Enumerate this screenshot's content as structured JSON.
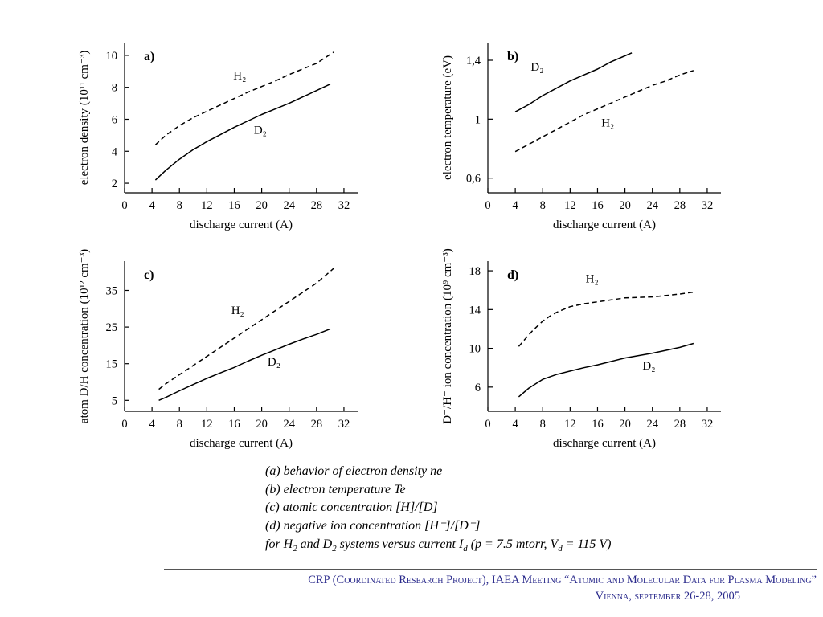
{
  "colors": {
    "footer_text": "#2b2b8c",
    "curve": "#000000",
    "axis": "#000000"
  },
  "chart_data": [
    {
      "type": "line",
      "panel": "a)",
      "xlabel": "discharge current (A)",
      "ylabel": "electron density (10¹¹ cm⁻³)",
      "xlim": [
        0,
        34
      ],
      "ylim": [
        1.4,
        10.8
      ],
      "xticks": {
        "values": [
          0,
          4,
          8,
          12,
          16,
          20,
          24,
          28,
          32
        ],
        "labels": [
          "0",
          "4",
          "8",
          "12",
          "16",
          "20",
          "24",
          "28",
          "32"
        ]
      },
      "yticks": {
        "values": [
          2,
          4,
          6,
          8,
          10
        ],
        "labels": [
          "2",
          "4",
          "6",
          "8",
          "10"
        ]
      },
      "series": [
        {
          "name": "H₂",
          "line": "dashed",
          "x": [
            4.5,
            6,
            8,
            10,
            12,
            14,
            16,
            18,
            20,
            22,
            24,
            26,
            28,
            30.5
          ],
          "y": [
            4.4,
            5.0,
            5.6,
            6.1,
            6.5,
            6.9,
            7.3,
            7.7,
            8.05,
            8.4,
            8.8,
            9.15,
            9.5,
            10.2
          ],
          "label_at": [
            16.8,
            8.5
          ]
        },
        {
          "name": "D₂",
          "line": "solid",
          "x": [
            4.5,
            6,
            8,
            10,
            12,
            14,
            16,
            18,
            20,
            22,
            24,
            26,
            28,
            30
          ],
          "y": [
            2.2,
            2.8,
            3.5,
            4.1,
            4.6,
            5.05,
            5.5,
            5.9,
            6.3,
            6.65,
            7.0,
            7.4,
            7.8,
            8.2
          ],
          "label_at": [
            19.8,
            5.1
          ]
        }
      ]
    },
    {
      "type": "line",
      "panel": "b)",
      "xlabel": "discharge current (A)",
      "ylabel": "electron temperature (eV)",
      "xlim": [
        0,
        34
      ],
      "ylim": [
        0.5,
        1.52
      ],
      "xticks": {
        "values": [
          0,
          4,
          8,
          12,
          16,
          20,
          24,
          28,
          32
        ],
        "labels": [
          "0",
          "4",
          "8",
          "12",
          "16",
          "20",
          "24",
          "28",
          "32"
        ]
      },
      "yticks": {
        "values": [
          0.6,
          1.0,
          1.4
        ],
        "labels": [
          "0,6",
          "1",
          "1,4"
        ]
      },
      "series": [
        {
          "name": "D₂",
          "line": "solid",
          "x": [
            4,
            6,
            8,
            10,
            12,
            14,
            16,
            18,
            20,
            21
          ],
          "y": [
            1.05,
            1.1,
            1.16,
            1.21,
            1.26,
            1.3,
            1.34,
            1.39,
            1.43,
            1.45
          ],
          "label_at": [
            7.2,
            1.33
          ]
        },
        {
          "name": "H₂",
          "line": "dashed",
          "x": [
            4,
            6,
            8,
            10,
            12,
            14,
            16,
            18,
            20,
            22,
            24,
            26,
            28,
            30
          ],
          "y": [
            0.78,
            0.83,
            0.88,
            0.93,
            0.98,
            1.03,
            1.07,
            1.11,
            1.15,
            1.19,
            1.23,
            1.26,
            1.3,
            1.33
          ],
          "label_at": [
            17.5,
            0.95
          ]
        }
      ]
    },
    {
      "type": "line",
      "panel": "c)",
      "xlabel": "discharge current (A)",
      "ylabel": "atom D/H concentration (10¹² cm⁻³)",
      "xlim": [
        0,
        34
      ],
      "ylim": [
        2,
        43
      ],
      "xticks": {
        "values": [
          0,
          4,
          8,
          12,
          16,
          20,
          24,
          28,
          32
        ],
        "labels": [
          "0",
          "4",
          "8",
          "12",
          "16",
          "20",
          "24",
          "28",
          "32"
        ]
      },
      "yticks": {
        "values": [
          5,
          15,
          25,
          35
        ],
        "labels": [
          "5",
          "15",
          "25",
          "35"
        ]
      },
      "series": [
        {
          "name": "H₂",
          "line": "dashed",
          "x": [
            5,
            6,
            8,
            10,
            12,
            14,
            16,
            18,
            20,
            22,
            24,
            26,
            28,
            30.5
          ],
          "y": [
            8,
            9.5,
            12,
            14.5,
            17,
            19.5,
            22,
            24.5,
            27,
            29.5,
            32,
            34.5,
            37,
            41
          ],
          "label_at": [
            16.5,
            28.5
          ]
        },
        {
          "name": "D₂",
          "line": "solid",
          "x": [
            5,
            6,
            8,
            10,
            12,
            14,
            16,
            18,
            20,
            22,
            24,
            26,
            28,
            30
          ],
          "y": [
            5,
            5.8,
            7.6,
            9.3,
            11,
            12.5,
            14,
            15.7,
            17.3,
            18.8,
            20.3,
            21.7,
            23,
            24.5
          ],
          "label_at": [
            21.8,
            14.5
          ]
        }
      ]
    },
    {
      "type": "line",
      "panel": "d)",
      "xlabel": "discharge current (A)",
      "ylabel": "D⁻/H⁻ ion concentration (10⁹ cm⁻³)",
      "xlim": [
        0,
        34
      ],
      "ylim": [
        3.5,
        19
      ],
      "xticks": {
        "values": [
          0,
          4,
          8,
          12,
          16,
          20,
          24,
          28,
          32
        ],
        "labels": [
          "0",
          "4",
          "8",
          "12",
          "16",
          "20",
          "24",
          "28",
          "32"
        ]
      },
      "yticks": {
        "values": [
          6,
          10,
          14,
          18
        ],
        "labels": [
          "6",
          "10",
          "14",
          "18"
        ]
      },
      "series": [
        {
          "name": "H₂",
          "line": "dashed",
          "x": [
            4.5,
            5.5,
            6.5,
            8,
            9,
            10,
            11,
            12,
            14,
            16,
            18,
            20,
            22,
            24,
            26,
            28,
            30
          ],
          "y": [
            10.2,
            11.0,
            11.8,
            12.8,
            13.3,
            13.7,
            14.0,
            14.3,
            14.6,
            14.8,
            15.0,
            15.2,
            15.25,
            15.3,
            15.45,
            15.6,
            15.8
          ],
          "label_at": [
            15.2,
            16.8
          ]
        },
        {
          "name": "D₂",
          "line": "solid",
          "x": [
            4.5,
            6,
            8,
            10,
            12,
            14,
            16,
            18,
            20,
            22,
            24,
            26,
            28,
            30
          ],
          "y": [
            5.0,
            5.9,
            6.8,
            7.3,
            7.65,
            8.0,
            8.3,
            8.65,
            9.0,
            9.25,
            9.5,
            9.8,
            10.1,
            10.5
          ],
          "label_at": [
            23.5,
            7.8
          ]
        }
      ]
    }
  ],
  "caption": {
    "lines": [
      [
        {
          "t": "(a) behavior of electron density ne"
        }
      ],
      [
        {
          "t": "(b) electron temperature Te"
        }
      ],
      [
        {
          "t": "(c) atomic concentration [H]/[D]"
        }
      ],
      [
        {
          "t": "(d) negative ion concentration [H⁻]/[D⁻]"
        }
      ],
      [
        {
          "t": "for H"
        },
        {
          "t": "2",
          "s": "sub"
        },
        {
          "t": " and D"
        },
        {
          "t": "2",
          "s": "sub"
        },
        {
          "t": " systems versus current I"
        },
        {
          "t": "d",
          "s": "sub"
        },
        {
          "t": " (p = 7.5 mtorr, V"
        },
        {
          "t": "d",
          "s": "sub"
        },
        {
          "t": " = 115 V)"
        }
      ]
    ]
  },
  "footer": {
    "line1": "CRP (Coordinated Research Project), IAEA Meeting “Atomic and Molecular Data for Plasma Modeling”",
    "line2": "Vienna, september 26-28, 2005"
  }
}
